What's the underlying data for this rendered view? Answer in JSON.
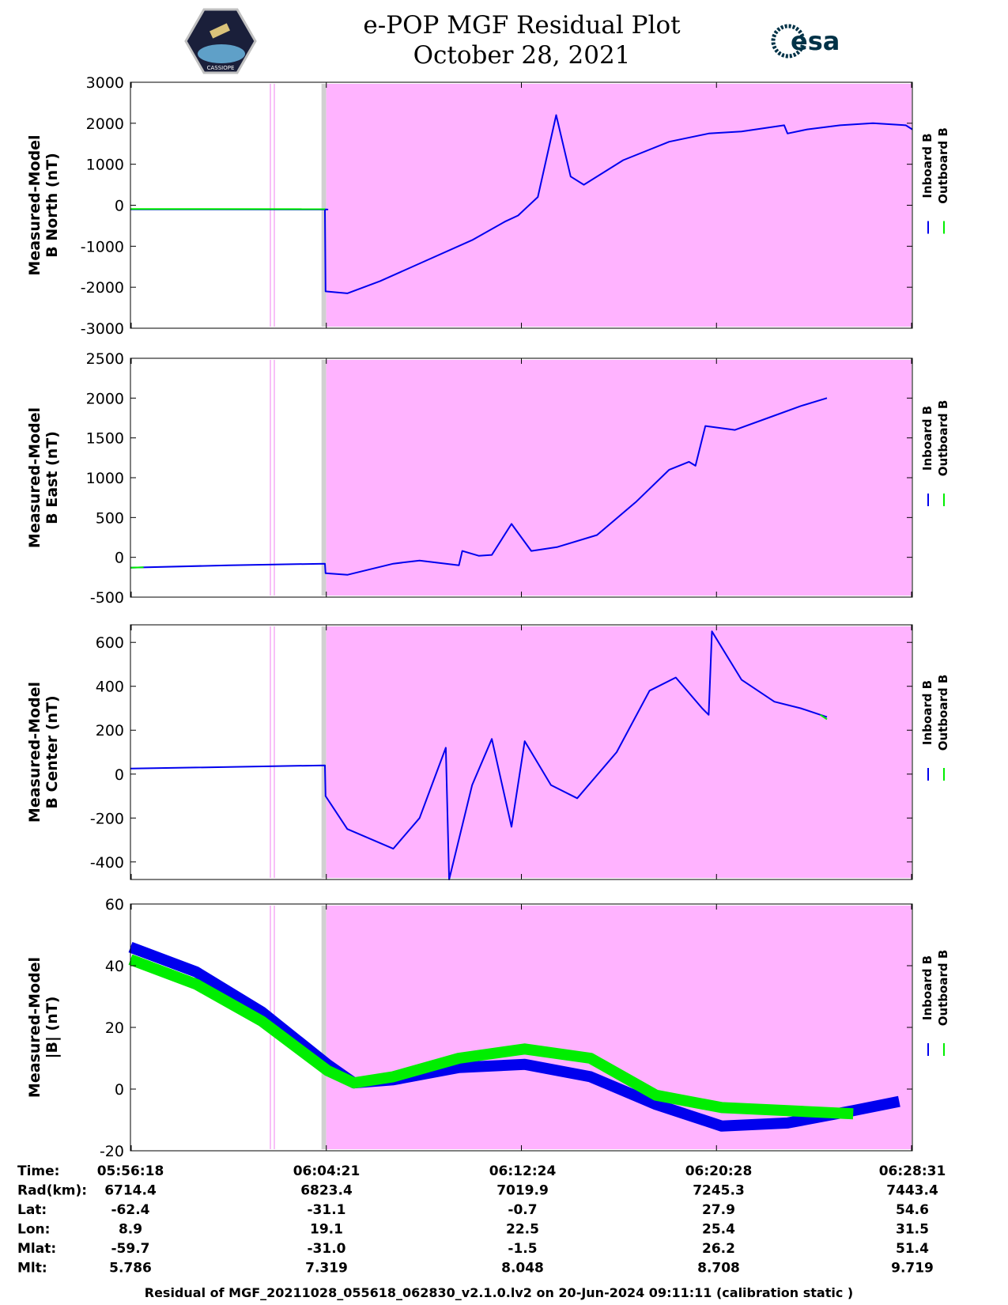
{
  "header": {
    "title_line1": "e-POP MGF Residual Plot",
    "title_line2": "October 28, 2021",
    "logo_left_text": "CASSIOPE",
    "logo_right_text": "esa"
  },
  "colors": {
    "inboard": "#0000ee",
    "outboard": "#00ee00",
    "shade": "#ffb3ff",
    "gap": "#d0d0d0"
  },
  "chart_data": [
    {
      "type": "line",
      "id": "north",
      "ylabel": [
        "Measured-Model",
        "B North (nT)"
      ],
      "ylim": [
        -3000,
        3000
      ],
      "yticks": [
        -3000,
        -2000,
        -1000,
        0,
        1000,
        2000,
        3000
      ],
      "legend": [
        "Inboard B",
        "Outboard B"
      ],
      "series": [
        {
          "name": "Inboard B",
          "points": [
            [
              0,
              -100
            ],
            [
              0.3,
              -105
            ],
            [
              0.296,
              -100
            ],
            [
              0.297,
              -2100
            ],
            [
              0.33,
              -2150
            ],
            [
              0.38,
              -1850
            ],
            [
              0.45,
              -1350
            ],
            [
              0.52,
              -850
            ],
            [
              0.57,
              -400
            ],
            [
              0.59,
              -250
            ],
            [
              0.62,
              200
            ],
            [
              0.648,
              2200
            ],
            [
              0.67,
              700
            ],
            [
              0.69,
              500
            ],
            [
              0.75,
              1100
            ],
            [
              0.82,
              1550
            ],
            [
              0.88,
              1750
            ],
            [
              0.93,
              1800
            ],
            [
              0.995,
              1950
            ],
            [
              1.0,
              1750
            ],
            [
              1.03,
              1850
            ],
            [
              1.08,
              1950
            ],
            [
              1.13,
              2000
            ],
            [
              1.18,
              1950
            ],
            [
              1.19,
              1850
            ]
          ]
        },
        {
          "name": "Outboard B",
          "points": [
            [
              0,
              -90
            ],
            [
              0.296,
              -95
            ]
          ]
        }
      ],
      "shade_start": 0.298
    },
    {
      "type": "line",
      "id": "east",
      "ylabel": [
        "Measured-Model",
        "B East (nT)"
      ],
      "ylim": [
        -500,
        2500
      ],
      "yticks": [
        -500,
        0,
        500,
        1000,
        1500,
        2000,
        2500
      ],
      "legend": [
        "Inboard B",
        "Outboard B"
      ],
      "series": [
        {
          "name": "Inboard B",
          "points": [
            [
              0,
              -130
            ],
            [
              0.15,
              -100
            ],
            [
              0.296,
              -80
            ],
            [
              0.297,
              -200
            ],
            [
              0.33,
              -220
            ],
            [
              0.4,
              -80
            ],
            [
              0.44,
              -40
            ],
            [
              0.48,
              -80
            ],
            [
              0.5,
              -100
            ],
            [
              0.505,
              80
            ],
            [
              0.53,
              20
            ],
            [
              0.55,
              30
            ],
            [
              0.58,
              420
            ],
            [
              0.61,
              80
            ],
            [
              0.65,
              130
            ],
            [
              0.71,
              280
            ],
            [
              0.77,
              700
            ],
            [
              0.82,
              1100
            ],
            [
              0.85,
              1200
            ],
            [
              0.86,
              1150
            ],
            [
              0.875,
              1650
            ],
            [
              0.92,
              1600
            ],
            [
              0.97,
              1750
            ],
            [
              1.02,
              1900
            ],
            [
              1.06,
              2000
            ]
          ]
        },
        {
          "name": "Outboard B",
          "points": [
            [
              0,
              -130
            ],
            [
              0.02,
              -125
            ]
          ]
        }
      ],
      "shade_start": 0.298
    },
    {
      "type": "line",
      "id": "center",
      "ylabel": [
        "Measured-Model",
        "B Center (nT)"
      ],
      "ylim": [
        -480,
        680
      ],
      "yticks": [
        -400,
        -200,
        0,
        200,
        400,
        600
      ],
      "legend": [
        "Inboard B",
        "Outboard B"
      ],
      "series": [
        {
          "name": "Inboard B",
          "points": [
            [
              0,
              25
            ],
            [
              0.296,
              40
            ],
            [
              0.297,
              -100
            ],
            [
              0.33,
              -250
            ],
            [
              0.4,
              -340
            ],
            [
              0.44,
              -200
            ],
            [
              0.48,
              120
            ],
            [
              0.485,
              -480
            ],
            [
              0.52,
              -50
            ],
            [
              0.55,
              160
            ],
            [
              0.58,
              -240
            ],
            [
              0.6,
              150
            ],
            [
              0.64,
              -50
            ],
            [
              0.68,
              -110
            ],
            [
              0.74,
              100
            ],
            [
              0.79,
              380
            ],
            [
              0.83,
              440
            ],
            [
              0.87,
              300
            ],
            [
              0.88,
              270
            ],
            [
              0.885,
              650
            ],
            [
              0.93,
              430
            ],
            [
              0.98,
              330
            ],
            [
              1.02,
              300
            ],
            [
              1.06,
              260
            ]
          ]
        },
        {
          "name": "Outboard B",
          "points": [
            [
              1.05,
              270
            ],
            [
              1.06,
              250
            ]
          ]
        }
      ],
      "shade_start": 0.298
    },
    {
      "type": "line",
      "id": "total",
      "ylabel": [
        "Measured-Model",
        "|B| (nT)"
      ],
      "ylim": [
        -20,
        60
      ],
      "yticks": [
        -20,
        0,
        20,
        40,
        60
      ],
      "legend": [
        "Inboard B",
        "Outboard B"
      ],
      "series": [
        {
          "name": "Inboard B",
          "points": [
            [
              0,
              46
            ],
            [
              0.1,
              38
            ],
            [
              0.2,
              25
            ],
            [
              0.3,
              8
            ],
            [
              0.34,
              2
            ],
            [
              0.4,
              3
            ],
            [
              0.5,
              7
            ],
            [
              0.6,
              8
            ],
            [
              0.7,
              4
            ],
            [
              0.8,
              -5
            ],
            [
              0.9,
              -12
            ],
            [
              1.0,
              -11
            ],
            [
              1.1,
              -7
            ],
            [
              1.17,
              -4
            ]
          ]
        },
        {
          "name": "Outboard B",
          "points": [
            [
              0,
              42
            ],
            [
              0.1,
              34
            ],
            [
              0.2,
              22
            ],
            [
              0.3,
              6
            ],
            [
              0.34,
              2
            ],
            [
              0.4,
              4
            ],
            [
              0.5,
              10
            ],
            [
              0.6,
              13
            ],
            [
              0.7,
              10
            ],
            [
              0.8,
              -2
            ],
            [
              0.9,
              -6
            ],
            [
              1.0,
              -7
            ],
            [
              1.1,
              -8
            ]
          ]
        }
      ],
      "shade_start": 0.298
    }
  ],
  "time_table": {
    "rows": [
      {
        "label": "Time:",
        "values": [
          "05:56:18",
          "06:04:21",
          "06:12:24",
          "06:20:28",
          "06:28:31"
        ]
      },
      {
        "label": "Rad(km):",
        "values": [
          "6714.4",
          "6823.4",
          "7019.9",
          "7245.3",
          "7443.4"
        ]
      },
      {
        "label": "Lat:",
        "values": [
          "-62.4",
          "-31.1",
          "-0.7",
          "27.9",
          "54.6"
        ]
      },
      {
        "label": "Lon:",
        "values": [
          "8.9",
          "19.1",
          "22.5",
          "25.4",
          "31.5"
        ]
      },
      {
        "label": "Mlat:",
        "values": [
          "-59.7",
          "-31.0",
          "-1.5",
          "26.2",
          "51.4"
        ]
      },
      {
        "label": "Mlt:",
        "values": [
          "5.786",
          "7.319",
          "8.048",
          "8.708",
          "9.719"
        ]
      }
    ]
  },
  "footer": "Residual of MGF_20211028_055618_062830_v2.1.0.lv2 on 20-Jun-2024 09:11:11 (calibration static )"
}
